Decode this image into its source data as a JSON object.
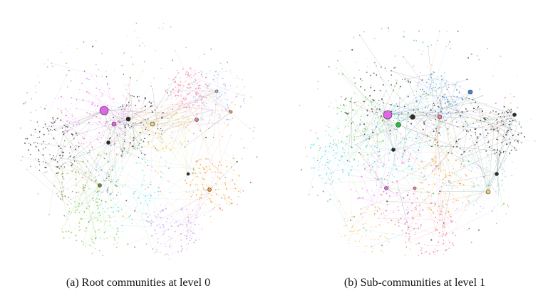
{
  "panels": [
    {
      "id": "a",
      "caption": "(a) Root communities at level 0",
      "palette": [
        "#e066e8",
        "#2a2a2a",
        "#59d4e0",
        "#7fcf4a",
        "#f2a03a",
        "#6a8a2a",
        "#f0d070",
        "#9fb8e8",
        "#f07aa0",
        "#c7a0f0"
      ]
    },
    {
      "id": "b",
      "caption": "(b) Sub-communities at level 1",
      "palette": [
        "#2a2a2a",
        "#59d4e0",
        "#7fcf4a",
        "#e066e8",
        "#f2a03a",
        "#3a8ad8",
        "#f07aa0",
        "#f0d070",
        "#20c040",
        "#a0e0f0"
      ]
    }
  ]
}
